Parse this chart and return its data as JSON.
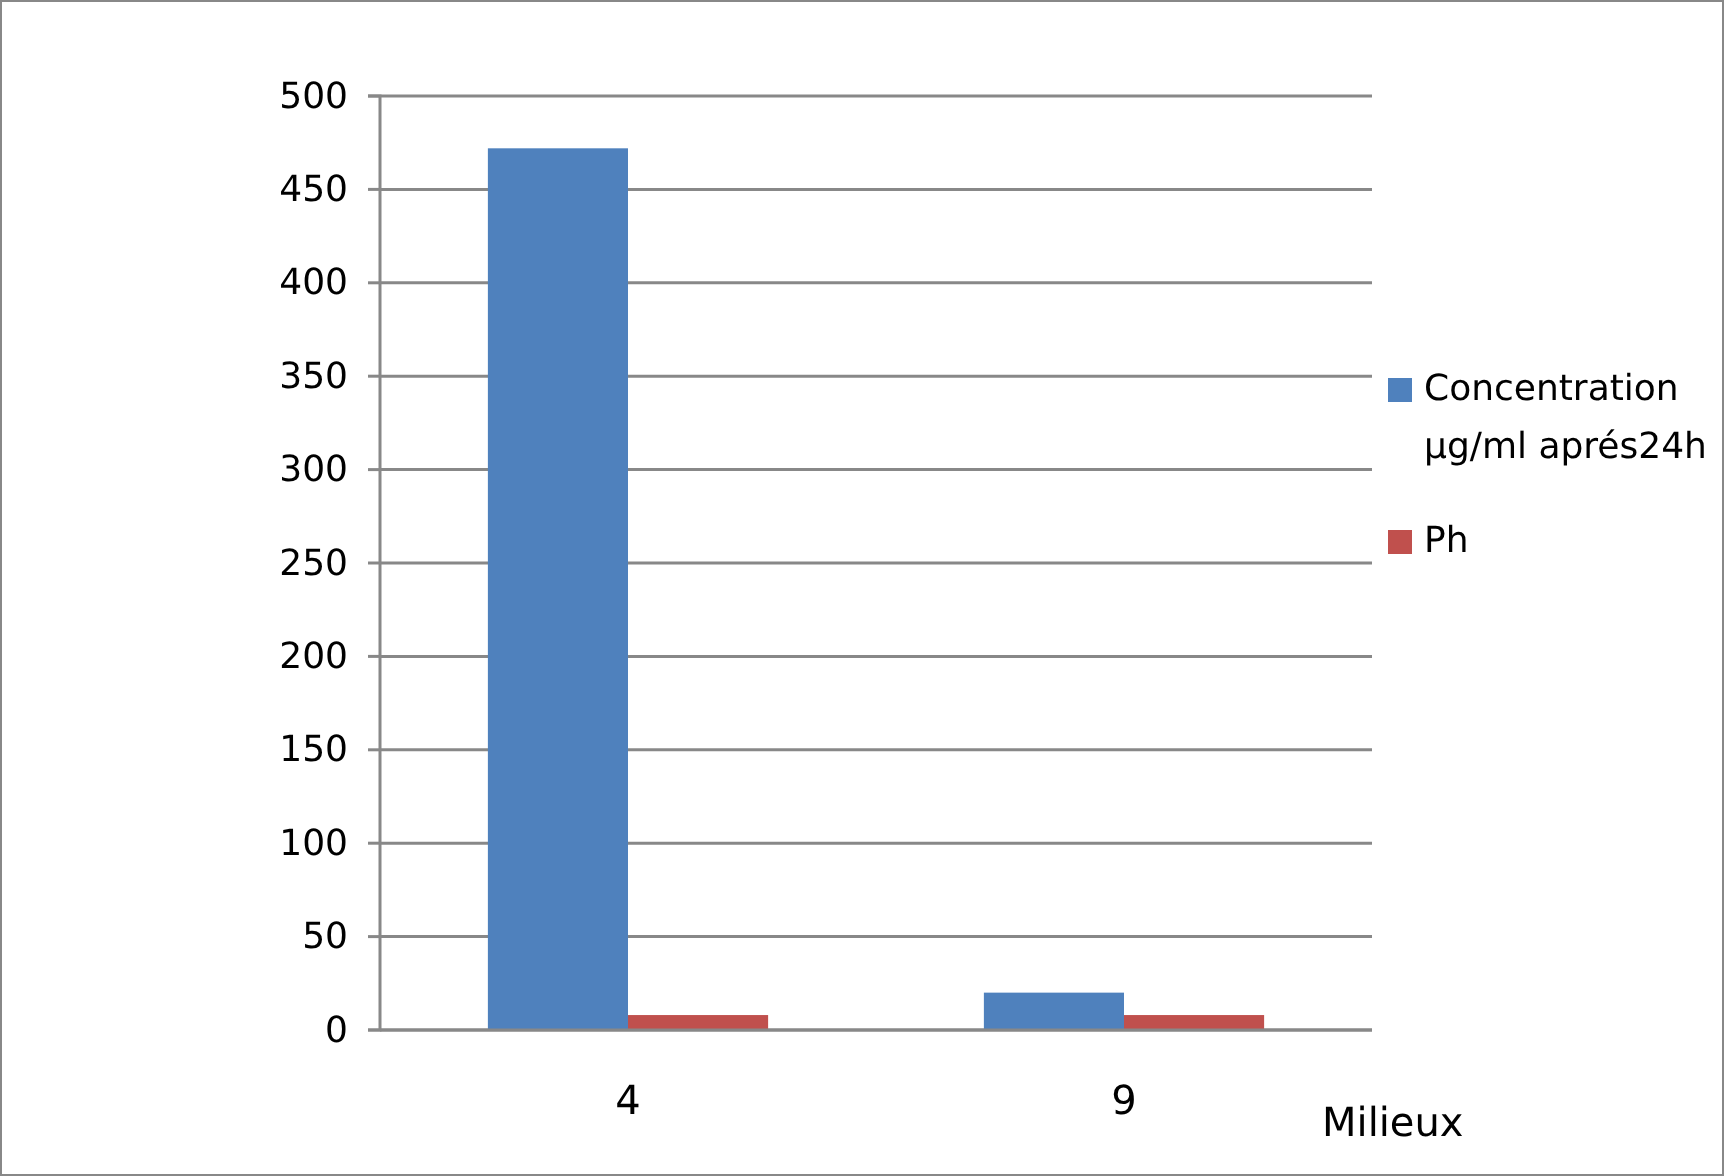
{
  "chart_data": {
    "type": "bar",
    "categories": [
      "4",
      "9"
    ],
    "xlabel": "Milieux",
    "series": [
      {
        "name": "Concentration µg/ml  aprés24h",
        "color": "#4f81bd",
        "values": [
          472,
          20
        ]
      },
      {
        "name": "Ph",
        "color": "#c0504d",
        "values": [
          8,
          8
        ]
      }
    ],
    "ylim": [
      0,
      500
    ],
    "yticks": [
      0,
      50,
      100,
      150,
      200,
      250,
      300,
      350,
      400,
      450,
      500
    ],
    "grid": "y",
    "legend": "right"
  }
}
